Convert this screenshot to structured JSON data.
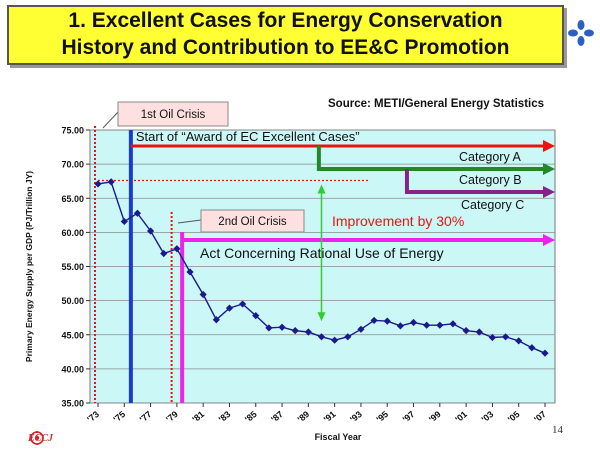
{
  "slide": {
    "title_line1": "1. Excellent Cases for Energy Conservation",
    "title_line2": "History and Contribution to EE&C Promotion",
    "source": "Source: METI/General Energy Statistics",
    "page_number": "14",
    "logo_text": "ECCJ",
    "logo_icon": "eccj-logo-icon",
    "deco_icon": "blue-flower-icon"
  },
  "chart_data": {
    "type": "line",
    "title": "",
    "xlabel": "Fiscal Year",
    "ylabel": "Primary Energy Supply per GDP (PJ/Trillion JY)",
    "ylim": [
      35,
      75
    ],
    "xlim": [
      1973,
      2007
    ],
    "grid": true,
    "yticks": [
      "75.00",
      "70.00",
      "65.00",
      "60.00",
      "55.00",
      "50.00",
      "45.00",
      "40.00",
      "35.00"
    ],
    "xticks": [
      "'73",
      "'75",
      "'77",
      "'79",
      "'81",
      "'83",
      "'85",
      "'87",
      "'89",
      "'91",
      "'93",
      "'95",
      "'97",
      "'99",
      "'01",
      "'03",
      "'05",
      "'07"
    ],
    "series": [
      {
        "x": [
          1973,
          1974,
          1975,
          1976,
          1977,
          1978,
          1979,
          1980,
          1981,
          1982,
          1983,
          1984,
          1985,
          1986,
          1987,
          1988,
          1989,
          1990,
          1991,
          1992,
          1993,
          1994,
          1995,
          1996,
          1997,
          1998,
          1999,
          2000,
          2001,
          2002,
          2003,
          2004,
          2005,
          2006,
          2007
        ],
        "values": [
          67.1,
          67.4,
          61.6,
          62.8,
          60.2,
          56.9,
          57.6,
          54.2,
          50.9,
          47.2,
          48.9,
          49.5,
          47.8,
          46.0,
          46.1,
          45.6,
          45.4,
          44.7,
          44.2,
          44.7,
          45.8,
          47.1,
          47.0,
          46.3,
          46.8,
          46.4,
          46.4,
          46.6,
          45.6,
          45.4,
          44.6,
          44.7,
          44.1,
          43.1,
          42.3
        ],
        "color": "#1a1a8c"
      }
    ],
    "annotations": {
      "oil_crisis_1": {
        "label": "1st Oil Crisis",
        "year": 1973
      },
      "oil_crisis_2": {
        "label": "2nd Oil Crisis",
        "year": 1978.6
      },
      "award": {
        "label": "Start of “Award of EC Excellent Cases”",
        "year": 1975.5,
        "color": "#1a3ccc",
        "arrow_color": "#ee1111"
      },
      "act": {
        "label": "Act Concerning Rational Use of Energy",
        "year": 1979.4,
        "color": "#ee22ee"
      },
      "category_a": {
        "label": "Category A",
        "year": 1989.8,
        "color": "#22882a"
      },
      "category_b": {
        "label": "Category B",
        "year": 1989.8,
        "color": "#22882a"
      },
      "category_c": {
        "label": "Category C",
        "year": 1996.5,
        "color": "#882288"
      },
      "improvement": {
        "label": "Improvement by 30%",
        "color": "#ee1111",
        "from": 67.6,
        "to": 46.4,
        "year": 1990,
        "line_color": "#33cc33"
      }
    }
  }
}
